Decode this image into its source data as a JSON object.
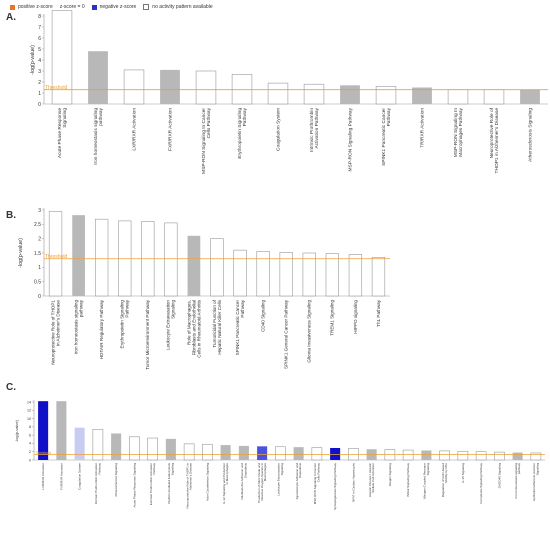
{
  "legend": {
    "items": [
      {
        "label": "positive z-score",
        "color": "#e8752a",
        "style": "solid"
      },
      {
        "label": "z-score = 0",
        "color": "#ffffff",
        "style": "none"
      },
      {
        "label": "negative z-score",
        "color": "#2a33c8",
        "style": "solid"
      },
      {
        "label": "no activity pattern available",
        "color": "#ffffff",
        "style": "outline"
      }
    ]
  },
  "colors": {
    "zero": "#b8b8b8",
    "neg_strong": "#1010c8",
    "neg_medium": "#4a52e0",
    "neg_light": "#c8cbf2",
    "no_pattern": "#ffffff",
    "threshold": "#f0a030"
  },
  "chart_data": [
    {
      "type": "bar",
      "panel_label": "A.",
      "ylabel": "-log(p-value)",
      "ylim": [
        0,
        8
      ],
      "yticks": [
        0,
        1,
        2,
        3,
        4,
        5,
        6,
        7,
        8
      ],
      "threshold": 1.3,
      "threshold_label": "Threshold",
      "categories": [
        "Acute Phase Response Signaling",
        "Iron homeostasis signaling pathway",
        "LXR/RXR Activation",
        "FXR/RXR Activation",
        "MSP-RON Signaling In Cancer Cells Pathway",
        "Erythropoietin Signaling Pathway",
        "Coagulation System",
        "Intrinsic Prothrombin Activation Pathway",
        "MSP-RON Signaling Pathway",
        "SPINK1 Pancreatic Cancer Pathway",
        "TR/RXR Activation",
        "MSP-RON Signaling In Macrophages Pathway",
        "Neuroprotective Role of THOP1 in Alzheimer's Disease",
        "Atherosclerosis Signaling"
      ],
      "values": [
        8.5,
        4.8,
        3.1,
        3.1,
        3.0,
        2.7,
        1.9,
        1.8,
        1.7,
        1.6,
        1.5,
        1.3,
        1.3,
        1.3
      ],
      "bar_colors": [
        "no_pattern",
        "zero",
        "no_pattern",
        "zero",
        "no_pattern",
        "no_pattern",
        "no_pattern",
        "no_pattern",
        "zero",
        "no_pattern",
        "zero",
        "no_pattern",
        "no_pattern",
        "zero"
      ]
    },
    {
      "type": "bar",
      "panel_label": "B.",
      "ylabel": "-log(p-value)",
      "ylim": [
        0,
        3
      ],
      "yticks": [
        0,
        0.5,
        1,
        1.5,
        2,
        2.5,
        3
      ],
      "threshold": 1.3,
      "threshold_label": "Threshold",
      "categories": [
        "Neuroprotective Role of THOP1 in Alzheimer's Disease",
        "Iron homeostasis signaling pathway",
        "HOTAIR Regulatory Pathway",
        "Erythropoietin Signaling Pathway",
        "Tumor Microenvironment Pathway",
        "Leukocyte Extravasation Signaling",
        "Role of Macrophages, Fibroblasts and Endothelial Cells in Rheumatoid Arthritis",
        "Tumoricidal Function of Hepatic Natural Killer Cells",
        "SPINK1 Pancreatic Cancer Pathway",
        "CD40 Signaling",
        "SPINK1 General Cancer Pathway",
        "Glioma Invasiveness Signaling",
        "TREM1 Signaling",
        "HIPPO signaling",
        "Th1 Pathway"
      ],
      "values": [
        2.95,
        2.82,
        2.68,
        2.62,
        2.6,
        2.55,
        2.1,
        2.0,
        1.6,
        1.55,
        1.52,
        1.5,
        1.48,
        1.45,
        1.35
      ],
      "bar_colors": [
        "no_pattern",
        "zero",
        "no_pattern",
        "no_pattern",
        "no_pattern",
        "no_pattern",
        "zero",
        "no_pattern",
        "no_pattern",
        "no_pattern",
        "no_pattern",
        "no_pattern",
        "no_pattern",
        "no_pattern",
        "no_pattern"
      ]
    },
    {
      "type": "bar",
      "panel_label": "C.",
      "ylabel": "-log(p-value)",
      "ylim": [
        0,
        14
      ],
      "yticks": [
        0,
        2,
        4,
        6,
        8,
        10,
        12,
        14
      ],
      "threshold": 1.3,
      "threshold_label": "Threshold",
      "categories": [
        "LXR/RXR Activation",
        "FXR/RXR Activation",
        "Coagulation System",
        "Intrinsic Prothrombin Activation Pathway",
        "Atherosclerosis Signaling",
        "Acute Phase Response Signaling",
        "Extrinsic Prothrombin Activation Pathway",
        "Clathrin-mediated Endocytosis Signaling",
        "Neuroprotective Role of THOP1 in Alzheimer's Disease",
        "Actin Cytoskeleton Signaling",
        "IL-12 Signaling and Production in Macrophages",
        "Glioblastoma Adhesion and Diapedesis",
        "Production of Nitric Oxide and Reactive Oxygen Species in Macrophages",
        "Leukocyte Extravasation Signaling",
        "Agranulocyte Adhesion and Diapedesis",
        "MSP-RON Signaling In Cancer Cells Pathway",
        "Synaptogenesis Signaling Pathway",
        "NFAT in Cardiac Hypertrophy",
        "Hepatic Fibrosis / Hepatic Stellate Cell Activation",
        "Integrin Signaling",
        "BAG2 Signaling Pathway",
        "Mitogen-Coupled Receptor Signaling",
        "Regulation of Actin-based Motility by Rho",
        "IL-15 Signaling",
        "Ferroptosis Signaling Pathway",
        "GADD45 Signaling",
        "Iron homeostasis signaling pathway",
        "Epithelial Adherens Junction Signaling"
      ],
      "values": [
        14.2,
        14.2,
        7.8,
        7.4,
        6.4,
        5.6,
        5.3,
        5.1,
        3.9,
        3.8,
        3.6,
        3.4,
        3.3,
        3.2,
        3.1,
        3.0,
        2.9,
        2.8,
        2.6,
        2.5,
        2.4,
        2.3,
        2.2,
        2.1,
        2.0,
        1.9,
        1.8,
        1.7
      ],
      "bar_colors": [
        "neg_strong",
        "zero",
        "neg_light",
        "no_pattern",
        "zero",
        "no_pattern",
        "no_pattern",
        "zero",
        "no_pattern",
        "no_pattern",
        "zero",
        "zero",
        "neg_medium",
        "no_pattern",
        "zero",
        "no_pattern",
        "neg_strong",
        "no_pattern",
        "zero",
        "no_pattern",
        "no_pattern",
        "zero",
        "no_pattern",
        "no_pattern",
        "no_pattern",
        "no_pattern",
        "zero",
        "no_pattern"
      ]
    }
  ]
}
